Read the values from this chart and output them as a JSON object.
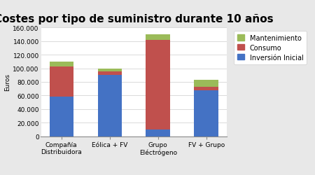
{
  "title": "Costes por tipo de suministro durante 10 años",
  "ylabel": "Euros",
  "categories": [
    "Compañía\nDistribuidora",
    "Eólica + FV",
    "Grupo\nEléctrógeno",
    "FV + Grupo"
  ],
  "series": {
    "Inversión Inicial": [
      58000,
      90000,
      10000,
      68000
    ],
    "Consumo": [
      45000,
      5000,
      132000,
      5000
    ],
    "Mantenimiento": [
      7000,
      5000,
      8000,
      10000
    ]
  },
  "colors": {
    "Inversión Inicial": "#4472C4",
    "Consumo": "#C0504D",
    "Mantenimiento": "#9BBB59"
  },
  "ylim": [
    0,
    160000
  ],
  "yticks": [
    0,
    20000,
    40000,
    60000,
    80000,
    100000,
    120000,
    140000,
    160000
  ],
  "legend_order": [
    "Mantenimiento",
    "Consumo",
    "Inversión Inicial"
  ],
  "background_color": "#E8E8E8",
  "plot_bg_color": "#FFFFFF",
  "title_fontsize": 11,
  "axis_label_fontsize": 6.5,
  "tick_fontsize": 6.5,
  "legend_fontsize": 7
}
